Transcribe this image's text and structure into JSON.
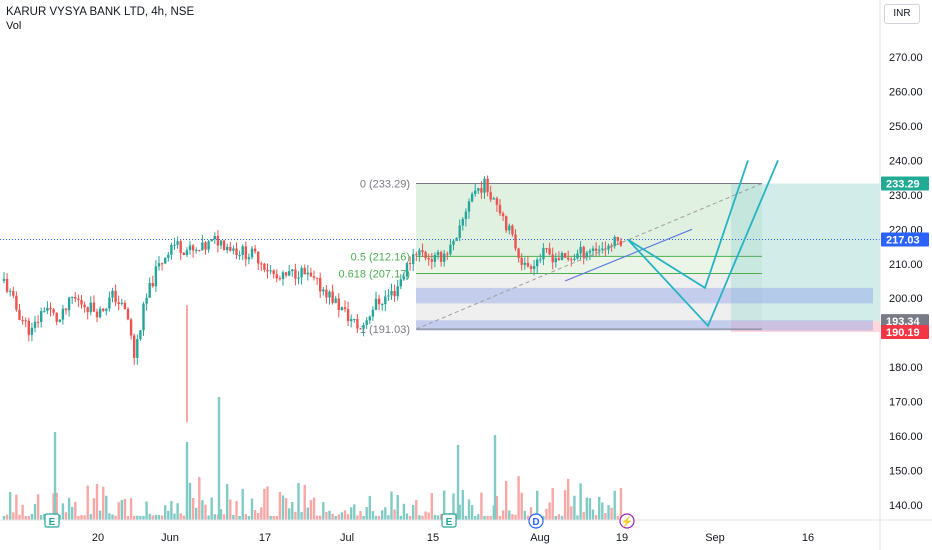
{
  "header": {
    "title": "KARUR VYSYA BANK LTD, 4h, NSE",
    "volume_label": "Vol",
    "currency": "INR"
  },
  "chart_data": {
    "type": "candlestick",
    "ylim": [
      133,
      283
    ],
    "y_ticks": [
      "140.00",
      "150.00",
      "160.00",
      "170.00",
      "180.00",
      "190.00",
      "200.00",
      "210.00",
      "220.00",
      "230.00",
      "240.00",
      "250.00",
      "260.00",
      "270.00"
    ],
    "x_ticks": [
      "20",
      "Jun",
      "17",
      "Jul",
      "15",
      "Aug",
      "19",
      "Sep",
      "16"
    ],
    "price_badges": [
      {
        "label": "233.29",
        "value": 233.29,
        "color": "#22ab94"
      },
      {
        "label": "217.03",
        "value": 217.03,
        "color": "#2962ff"
      },
      {
        "label": "193.34",
        "value": 193.34,
        "color": "#787b86"
      },
      {
        "label": "190.19",
        "value": 190.19,
        "color": "#f23645"
      }
    ],
    "fib_levels": [
      {
        "label": "0 (233.29)",
        "value": 233.29
      },
      {
        "label": "0.5 (212.16)",
        "value": 212.16
      },
      {
        "label": "0.618 (207.17)",
        "value": 207.17
      },
      {
        "label": "1 (191.03)",
        "value": 191.03
      }
    ],
    "event_markers": [
      "E",
      "E",
      "D",
      "⚡"
    ],
    "price_anchors": [
      [
        0.0,
        205
      ],
      [
        0.02,
        196
      ],
      [
        0.04,
        190
      ],
      [
        0.06,
        198
      ],
      [
        0.08,
        193
      ],
      [
        0.1,
        200
      ],
      [
        0.12,
        198
      ],
      [
        0.14,
        196
      ],
      [
        0.16,
        201
      ],
      [
        0.18,
        195
      ],
      [
        0.19,
        183
      ],
      [
        0.205,
        198
      ],
      [
        0.22,
        207
      ],
      [
        0.245,
        216
      ],
      [
        0.28,
        213
      ],
      [
        0.31,
        217
      ],
      [
        0.34,
        214
      ],
      [
        0.37,
        212
      ],
      [
        0.4,
        205
      ],
      [
        0.43,
        208
      ],
      [
        0.47,
        202
      ],
      [
        0.5,
        195
      ],
      [
        0.52,
        191
      ],
      [
        0.54,
        198
      ],
      [
        0.57,
        202
      ],
      [
        0.6,
        214
      ],
      [
        0.63,
        211
      ],
      [
        0.66,
        216
      ],
      [
        0.68,
        230
      ],
      [
        0.7,
        233
      ],
      [
        0.72,
        228
      ],
      [
        0.74,
        218
      ],
      [
        0.76,
        209
      ],
      [
        0.79,
        213
      ],
      [
        0.82,
        211
      ],
      [
        0.85,
        214
      ],
      [
        0.88,
        215
      ],
      [
        0.9,
        217
      ]
    ]
  }
}
